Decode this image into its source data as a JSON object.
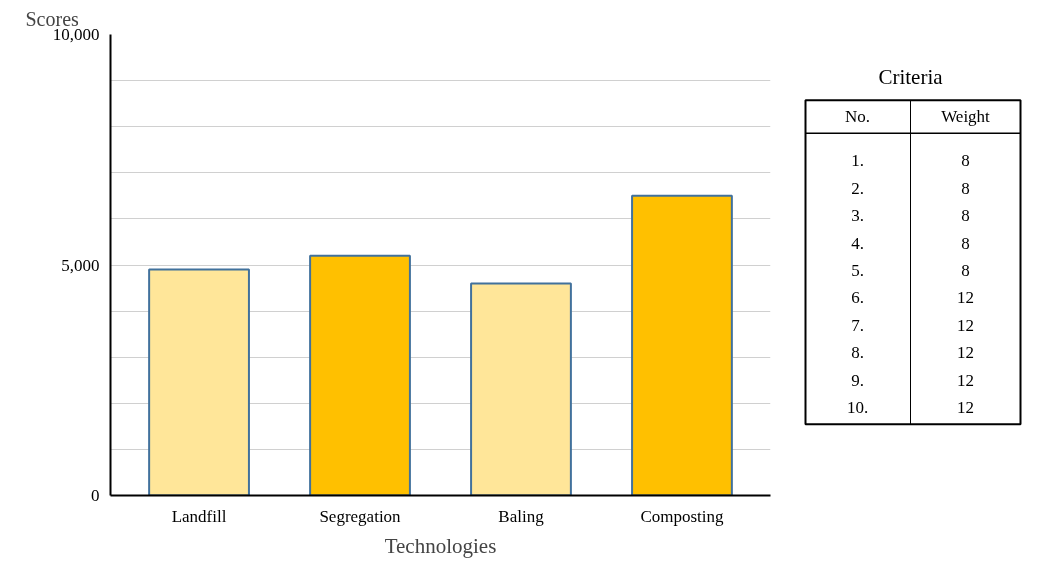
{
  "chart_data": [
    {
      "type": "bar",
      "xlabel": "Technologies",
      "ylabel": "Scores",
      "categories": [
        "Landfill",
        "Segregation",
        "Baling",
        "Composting"
      ],
      "values": [
        4900,
        5200,
        4600,
        6500
      ],
      "colors": [
        "#ffe699",
        "#ffc000",
        "#ffe699",
        "#ffc000"
      ],
      "ylim": [
        0,
        10000
      ],
      "yticks": [
        {
          "value": 0,
          "label": "0"
        },
        {
          "value": 1000,
          "label": null
        },
        {
          "value": 2000,
          "label": null
        },
        {
          "value": 3000,
          "label": null
        },
        {
          "value": 4000,
          "label": null
        },
        {
          "value": 5000,
          "label": "5,000"
        },
        {
          "value": 6000,
          "label": null
        },
        {
          "value": 7000,
          "label": null
        },
        {
          "value": 8000,
          "label": null
        },
        {
          "value": 9000,
          "label": null
        },
        {
          "value": 10000,
          "label": "10,000"
        }
      ],
      "grid": "y"
    },
    {
      "type": "heatmap",
      "title": "Criteria",
      "ylabel": "No.",
      "categories": [
        "Weight"
      ],
      "y_categories": [
        "1.",
        "2.",
        "3.",
        "4.",
        "5.",
        "6.",
        "7.",
        "8.",
        "9.",
        "10."
      ],
      "cells": [
        [
          8
        ],
        [
          8
        ],
        [
          8
        ],
        [
          8
        ],
        [
          8
        ],
        [
          12
        ],
        [
          12
        ],
        [
          12
        ],
        [
          12
        ],
        [
          12
        ]
      ],
      "data_labels": true
    }
  ]
}
